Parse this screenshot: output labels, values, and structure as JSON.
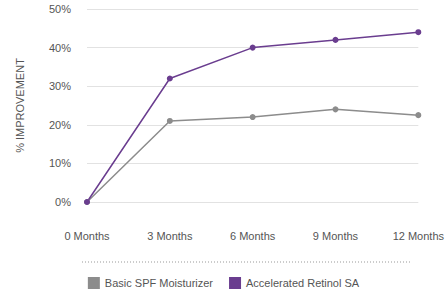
{
  "chart_data": {
    "type": "line",
    "y_label": "% IMPROVEMENT",
    "categories": [
      "0 Months",
      "3 Months",
      "6 Months",
      "9 Months",
      "12 Months"
    ],
    "series": [
      {
        "name": "Basic SPF Moisturizer",
        "color": "#8c8c8c",
        "values": [
          0,
          21,
          22,
          24,
          22.5
        ],
        "marker": "circle"
      },
      {
        "name": "Accelerated Retinol SA",
        "color": "#6a3d8f",
        "values": [
          0,
          32,
          40,
          42,
          44
        ],
        "marker": "circle"
      }
    ],
    "ylim": [
      0,
      50
    ],
    "yticks": [
      {
        "value": 0,
        "label": "0%"
      },
      {
        "value": 10,
        "label": "10%"
      },
      {
        "value": 20,
        "label": "20%"
      },
      {
        "value": 30,
        "label": "30%"
      },
      {
        "value": 40,
        "label": "40%"
      },
      {
        "value": 50,
        "label": "50%"
      }
    ],
    "grid": true,
    "legend": "bottom"
  }
}
